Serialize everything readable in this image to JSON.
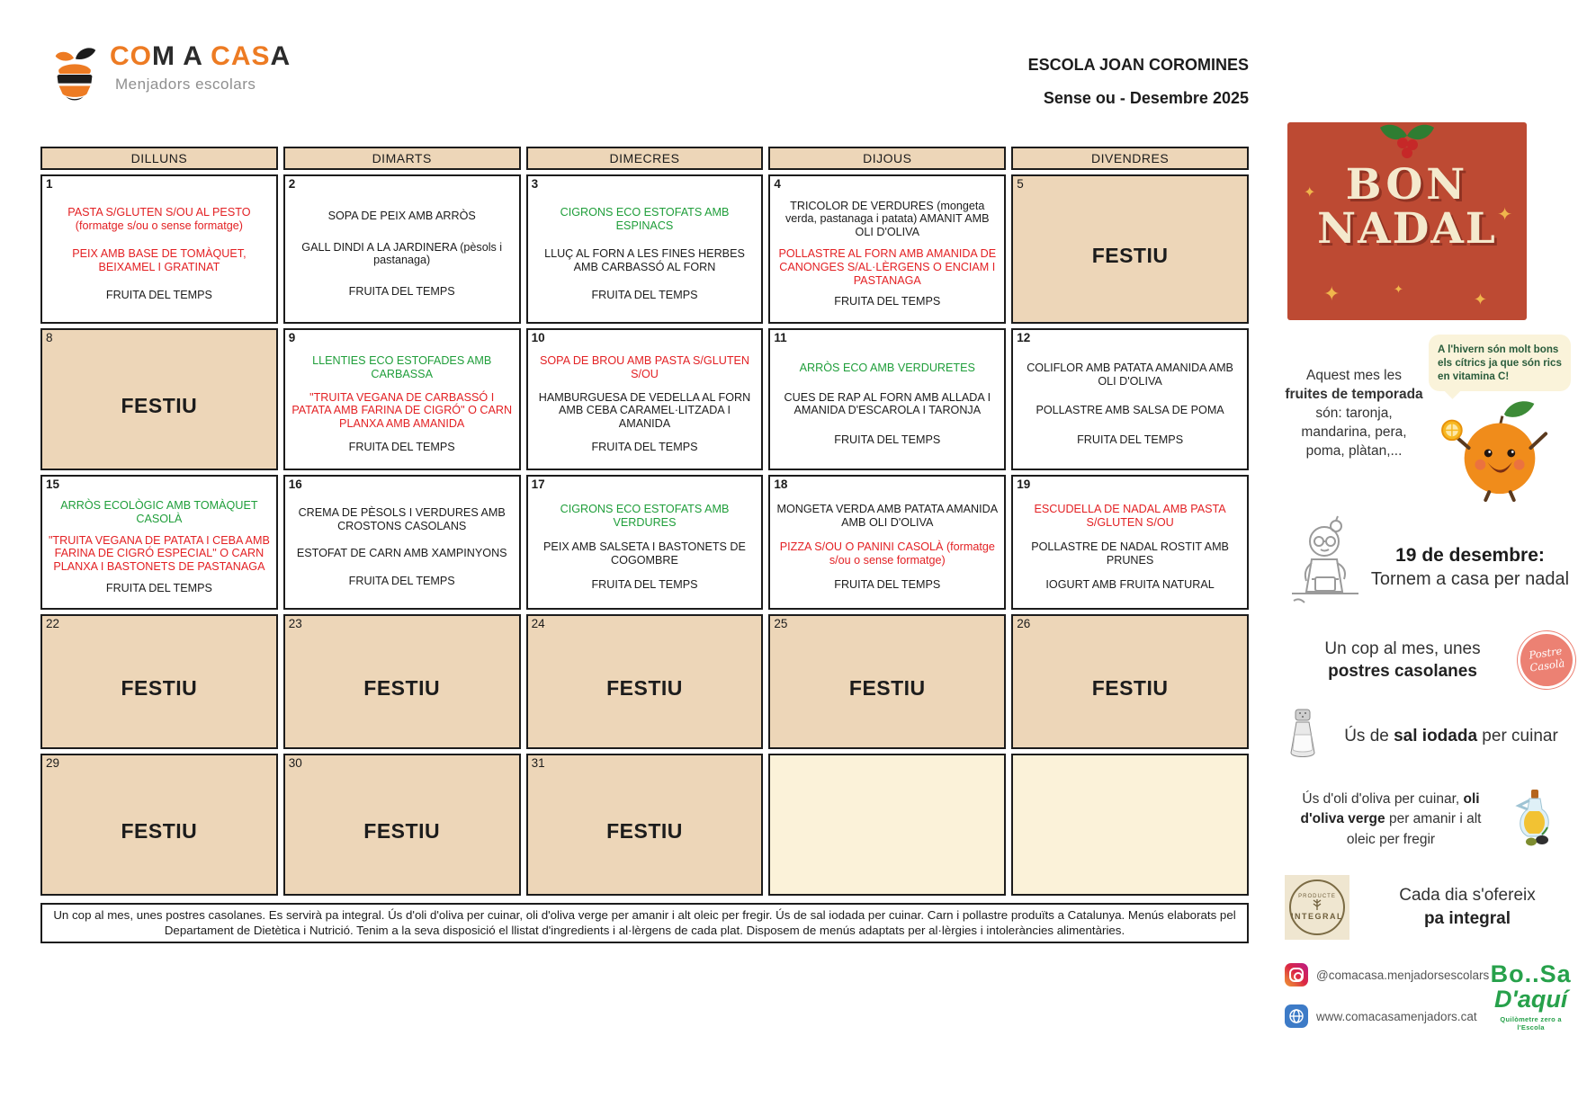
{
  "logo": {
    "letters": [
      {
        "ch": "C",
        "c": "o"
      },
      {
        "ch": "O",
        "c": "o"
      },
      {
        "ch": "M",
        "c": "k"
      },
      {
        "ch": " ",
        "c": "k"
      },
      {
        "ch": "A",
        "c": "k"
      },
      {
        "ch": " ",
        "c": "k"
      },
      {
        "ch": "C",
        "c": "o"
      },
      {
        "ch": "A",
        "c": "o"
      },
      {
        "ch": "S",
        "c": "o"
      },
      {
        "ch": "A",
        "c": "k"
      }
    ],
    "subtitle": "Menjadors escolars"
  },
  "header": {
    "school": "ESCOLA JOAN COROMINES",
    "menu_title": "Sense ou - Desembre 2025"
  },
  "calendar": {
    "day_headers": [
      "DILLUNS",
      "DIMARTS",
      "DIMECRES",
      "DIJOUS",
      "DIVENDRES"
    ],
    "festiu_label": "FESTIU",
    "weeks": [
      [
        {
          "day": "1",
          "type": "menu",
          "items": [
            {
              "color": "red",
              "text": "PASTA S/GLUTEN S/OU AL PESTO (formatge s/ou o sense formatge)"
            },
            {
              "color": "red",
              "text": "PEIX AMB BASE DE TOMÀQUET, BEIXAMEL I GRATINAT"
            },
            {
              "color": "black",
              "text": "FRUITA DEL TEMPS"
            }
          ]
        },
        {
          "day": "2",
          "type": "menu",
          "items": [
            {
              "color": "black",
              "text": "SOPA DE PEIX AMB ARRÒS"
            },
            {
              "color": "black",
              "text": "GALL DINDI A LA JARDINERA (pèsols i pastanaga)"
            },
            {
              "color": "black",
              "text": "FRUITA DEL TEMPS"
            }
          ]
        },
        {
          "day": "3",
          "type": "menu",
          "items": [
            {
              "color": "green",
              "text": "CIGRONS ECO ESTOFATS AMB ESPINACS"
            },
            {
              "color": "black",
              "text": "LLUÇ AL FORN A LES FINES HERBES AMB CARBASSÓ AL FORN"
            },
            {
              "color": "black",
              "text": "FRUITA DEL TEMPS"
            }
          ]
        },
        {
          "day": "4",
          "type": "menu",
          "items": [
            {
              "color": "black",
              "text": "TRICOLOR DE VERDURES (mongeta verda, pastanaga i patata) AMANIT AMB OLI D'OLIVA"
            },
            {
              "color": "red",
              "text": "POLLASTRE AL FORN AMB AMANIDA DE CANONGES S/AL·LÈRGENS O ENCIAM I PASTANAGA"
            },
            {
              "color": "black",
              "text": "FRUITA DEL TEMPS"
            }
          ]
        },
        {
          "day": "5",
          "type": "festiu"
        }
      ],
      [
        {
          "day": "8",
          "type": "festiu"
        },
        {
          "day": "9",
          "type": "menu",
          "items": [
            {
              "color": "green",
              "text": "LLENTIES ECO ESTOFADES AMB CARBASSA"
            },
            {
              "color": "red",
              "text": "\"TRUITA VEGANA DE CARBASSÓ I PATATA AMB FARINA DE CIGRÓ\" O CARN PLANXA AMB AMANIDA"
            },
            {
              "color": "black",
              "text": "FRUITA DEL TEMPS"
            }
          ]
        },
        {
          "day": "10",
          "type": "menu",
          "items": [
            {
              "color": "red",
              "text": "SOPA DE BROU AMB PASTA S/GLUTEN S/OU"
            },
            {
              "color": "black",
              "text": "HAMBURGUESA DE VEDELLA AL FORN AMB CEBA CARAMEL·LITZADA I AMANIDA"
            },
            {
              "color": "black",
              "text": "FRUITA DEL TEMPS"
            }
          ]
        },
        {
          "day": "11",
          "type": "menu",
          "items": [
            {
              "color": "green",
              "text": "ARRÒS ECO AMB VERDURETES"
            },
            {
              "color": "black",
              "text": "CUES DE RAP AL FORN AMB ALLADA I AMANIDA D'ESCAROLA I TARONJA"
            },
            {
              "color": "black",
              "text": "FRUITA DEL TEMPS"
            }
          ]
        },
        {
          "day": "12",
          "type": "menu",
          "items": [
            {
              "color": "black",
              "text": "COLIFLOR AMB PATATA AMANIDA AMB OLI D'OLIVA"
            },
            {
              "color": "black",
              "text": "POLLASTRE AMB SALSA DE POMA"
            },
            {
              "color": "black",
              "text": "FRUITA DEL TEMPS"
            }
          ]
        }
      ],
      [
        {
          "day": "15",
          "type": "menu",
          "items": [
            {
              "color": "green",
              "text": "ARRÒS ECOLÒGIC AMB TOMÀQUET CASOLÀ"
            },
            {
              "color": "red",
              "text": "\"TRUITA VEGANA DE PATATA I CEBA AMB FARINA DE CIGRÓ ESPECIAL\" O CARN PLANXA I BASTONETS DE PASTANAGA"
            },
            {
              "color": "black",
              "text": "FRUITA DEL TEMPS"
            }
          ]
        },
        {
          "day": "16",
          "type": "menu",
          "items": [
            {
              "color": "black",
              "text": "CREMA DE PÈSOLS I VERDURES AMB CROSTONS CASOLANS"
            },
            {
              "color": "black",
              "text": "ESTOFAT DE CARN AMB XAMPINYONS"
            },
            {
              "color": "black",
              "text": "FRUITA DEL TEMPS"
            }
          ]
        },
        {
          "day": "17",
          "type": "menu",
          "items": [
            {
              "color": "green",
              "text": "CIGRONS ECO ESTOFATS AMB VERDURES"
            },
            {
              "color": "black",
              "text": "PEIX AMB SALSETA I BASTONETS DE COGOMBRE"
            },
            {
              "color": "black",
              "text": "FRUITA DEL TEMPS"
            }
          ]
        },
        {
          "day": "18",
          "type": "menu",
          "items": [
            {
              "color": "black",
              "text": "MONGETA VERDA AMB PATATA AMANIDA AMB OLI D'OLIVA"
            },
            {
              "color": "red",
              "text": "PIZZA S/OU O PANINI CASOLÀ (formatge s/ou o sense formatge)"
            },
            {
              "color": "black",
              "text": "FRUITA DEL TEMPS"
            }
          ]
        },
        {
          "day": "19",
          "type": "menu",
          "items": [
            {
              "color": "red",
              "text": "ESCUDELLA DE NADAL AMB PASTA S/GLUTEN S/OU"
            },
            {
              "color": "black",
              "text": "POLLASTRE DE NADAL ROSTIT AMB PRUNES"
            },
            {
              "color": "black",
              "text": "IOGURT AMB FRUITA NATURAL"
            }
          ]
        }
      ],
      [
        {
          "day": "22",
          "type": "festiu"
        },
        {
          "day": "23",
          "type": "festiu"
        },
        {
          "day": "24",
          "type": "festiu"
        },
        {
          "day": "25",
          "type": "festiu"
        },
        {
          "day": "26",
          "type": "festiu"
        }
      ],
      [
        {
          "day": "29",
          "type": "festiu"
        },
        {
          "day": "30",
          "type": "festiu"
        },
        {
          "day": "31",
          "type": "festiu"
        },
        {
          "type": "empty"
        },
        {
          "type": "empty"
        }
      ]
    ]
  },
  "footer": {
    "text": "Un cop al mes, unes postres casolanes. Es servirà pa integral. Ús d'oli d'oliva per cuinar, oli d'oliva verge per amanir i alt oleic per fregir. Ús de sal iodada per cuinar. Carn i pollastre produïts a Catalunya. Menús elaborats pel Departament de Dietètica i Nutrició. Tenim a la seva disposició el llistat d'ingredients i al·lèrgens de cada plat. Disposem de menús adaptats per al·lèrgies i intoleràncies alimentàries."
  },
  "sidebar": {
    "banner": {
      "word1": "BON",
      "word2": "NADAL"
    },
    "fruits": {
      "t1": "Aquest mes les ",
      "bold": "fruites de temporada",
      "t2": " són: taronja, mandarina, pera, poma, plàtan,...",
      "bubble": "A l'hivern són molt bons els cítrics ja que són rics en vitamina C!"
    },
    "return_home": {
      "bold": "19 de desembre:",
      "text": "Tornem a casa per nadal"
    },
    "desserts": {
      "t1": "Un cop al mes, unes",
      "bold": "postres casolanes",
      "badge1": "Postre",
      "badge2": "Casolà"
    },
    "salt": {
      "t1": "Ús de ",
      "bold": "sal iodada",
      "t2": " per cuinar"
    },
    "oil": {
      "t1": "Ús d'oli d'oliva per cuinar, ",
      "bold": "oli d'oliva verge",
      "t2": " per amanir i alt oleic per fregir"
    },
    "bread": {
      "t1": "Cada dia s'ofereix",
      "bold": "pa integral",
      "stamp_top": "PRODUCTE",
      "stamp": "INTEGRAL"
    },
    "social": {
      "instagram": "@comacasa.menjadorsescolars",
      "web": "www.comacasamenjadors.cat"
    },
    "bosa": {
      "l1": "Bo..Sa",
      "l2": "D'aquí",
      "tagline": "Quilòmetre zero a l'Escola"
    }
  }
}
